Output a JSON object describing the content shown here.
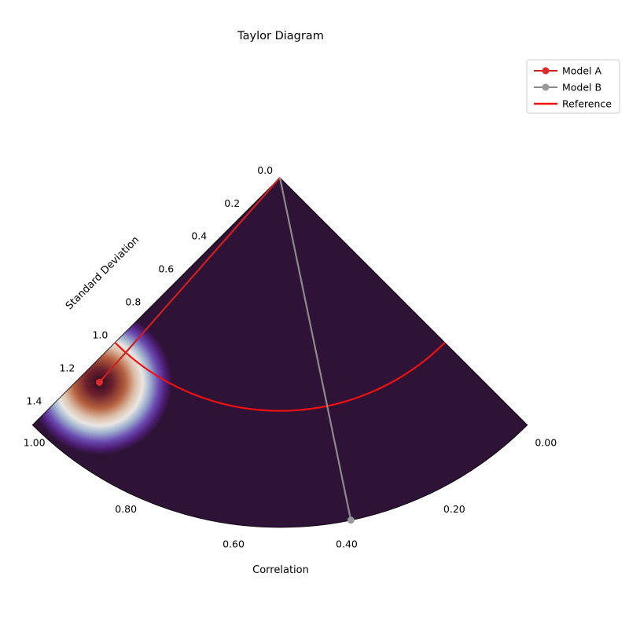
{
  "chart_data": {
    "type": "scatter",
    "subtype": "taylor-diagram",
    "title": "Taylor Diagram",
    "xlabel": "Correlation",
    "ylabel": "Standard Deviation",
    "correlation_range": [
      0.0,
      1.0
    ],
    "std_range": [
      0.0,
      1.5
    ],
    "std_ticks": [
      {
        "value": 0.0,
        "label": "0.0"
      },
      {
        "value": 0.2,
        "label": "0.2"
      },
      {
        "value": 0.4,
        "label": "0.4"
      },
      {
        "value": 0.6,
        "label": "0.6"
      },
      {
        "value": 0.8,
        "label": "0.8"
      },
      {
        "value": 1.0,
        "label": "1.0"
      },
      {
        "value": 1.2,
        "label": "1.2"
      },
      {
        "value": 1.4,
        "label": "1.4"
      }
    ],
    "correlation_ticks": [
      {
        "value": 0.0,
        "label": "0.00"
      },
      {
        "value": 0.2,
        "label": "0.20"
      },
      {
        "value": 0.4,
        "label": "0.40"
      },
      {
        "value": 0.6,
        "label": "0.60"
      },
      {
        "value": 0.8,
        "label": "0.80"
      },
      {
        "value": 1.0,
        "label": "1.00"
      }
    ],
    "series": [
      {
        "name": "Model A",
        "correlation": 0.96,
        "std": 1.17,
        "color": "#dd2a2a",
        "line_color": "#cc2020"
      },
      {
        "name": "Model B",
        "correlation": 0.37,
        "std": 1.5,
        "color": "#999999",
        "line_color": "#8a8a8a"
      }
    ],
    "reference": {
      "name": "Reference",
      "std": 1.0,
      "color": "#ee1111"
    },
    "background": {
      "colormap": "twilight_shifted",
      "base_color": "#2f1337",
      "peak_correlation": 0.96,
      "peak_std": 1.17
    },
    "legend_position": "top-right",
    "grid": false
  }
}
